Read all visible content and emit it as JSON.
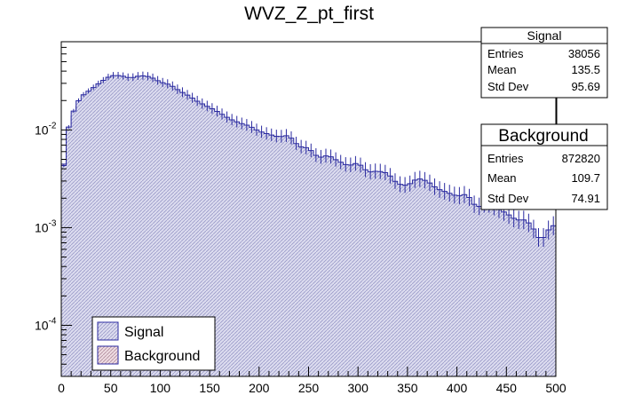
{
  "chart_data": {
    "type": "histogram",
    "title": "WVZ_Z_pt_first",
    "xlabel": "",
    "ylabel": "",
    "xlim": [
      0,
      500
    ],
    "ylim": [
      3e-05,
      0.08
    ],
    "yscale": "log",
    "bin_width": 5,
    "x_ticks": [
      0,
      50,
      100,
      150,
      200,
      250,
      300,
      350,
      400,
      450,
      500
    ],
    "x_tick_labels": [
      "0",
      "50",
      "100",
      "150",
      "200",
      "250",
      "300",
      "350",
      "400",
      "450",
      "500"
    ],
    "y_major_ticks": [
      0.0001,
      0.001,
      0.01
    ],
    "y_tick_labels": [
      {
        "base": "10",
        "exp": "-4"
      },
      {
        "base": "10",
        "exp": "-3"
      },
      {
        "base": "10",
        "exp": "-2"
      }
    ],
    "series": [
      {
        "name": "Signal",
        "fill": "#d6d6ec",
        "line": "#2a2aa0",
        "errors": true,
        "anchors": [
          [
            0,
            0.0022
          ],
          [
            5,
            0.0085
          ],
          [
            10,
            0.0135
          ],
          [
            15,
            0.018
          ],
          [
            20,
            0.022
          ],
          [
            30,
            0.026
          ],
          [
            40,
            0.031
          ],
          [
            50,
            0.036
          ],
          [
            60,
            0.036
          ],
          [
            70,
            0.034
          ],
          [
            80,
            0.036
          ],
          [
            90,
            0.035
          ],
          [
            100,
            0.031
          ],
          [
            110,
            0.029
          ],
          [
            120,
            0.025
          ],
          [
            130,
            0.022
          ],
          [
            140,
            0.019
          ],
          [
            150,
            0.017
          ],
          [
            160,
            0.015
          ],
          [
            170,
            0.013
          ],
          [
            180,
            0.0118
          ],
          [
            190,
            0.011
          ],
          [
            200,
            0.0097
          ],
          [
            210,
            0.009
          ],
          [
            220,
            0.0085
          ],
          [
            230,
            0.0088
          ],
          [
            240,
            0.0068
          ],
          [
            250,
            0.0065
          ],
          [
            260,
            0.0052
          ],
          [
            270,
            0.0055
          ],
          [
            280,
            0.0048
          ],
          [
            290,
            0.0043
          ],
          [
            300,
            0.0046
          ],
          [
            310,
            0.0037
          ],
          [
            320,
            0.0038
          ],
          [
            330,
            0.0036
          ],
          [
            340,
            0.0028
          ],
          [
            350,
            0.0027
          ],
          [
            360,
            0.0032
          ],
          [
            370,
            0.003
          ],
          [
            380,
            0.0025
          ],
          [
            390,
            0.0023
          ],
          [
            400,
            0.0021
          ],
          [
            410,
            0.0022
          ],
          [
            420,
            0.0016
          ],
          [
            430,
            0.0018
          ],
          [
            440,
            0.0016
          ],
          [
            450,
            0.0014
          ],
          [
            460,
            0.0012
          ],
          [
            470,
            0.0012
          ],
          [
            480,
            0.0009
          ],
          [
            485,
            0.0007
          ],
          [
            490,
            0.0009
          ],
          [
            500,
            0.0011
          ]
        ]
      },
      {
        "name": "Background",
        "fill": "#e8d4da",
        "line": "#2a2aa0",
        "errors": false,
        "anchors": [
          [
            0,
            0.0025
          ],
          [
            5,
            0.008
          ],
          [
            10,
            0.012
          ],
          [
            15,
            0.016
          ],
          [
            20,
            0.019
          ],
          [
            30,
            0.022
          ],
          [
            40,
            0.026
          ],
          [
            50,
            0.029
          ],
          [
            60,
            0.031
          ],
          [
            70,
            0.032
          ],
          [
            80,
            0.031
          ],
          [
            90,
            0.029
          ],
          [
            100,
            0.027
          ],
          [
            110,
            0.025
          ],
          [
            120,
            0.022
          ],
          [
            130,
            0.019
          ],
          [
            140,
            0.017
          ],
          [
            150,
            0.015
          ],
          [
            160,
            0.013
          ],
          [
            170,
            0.0115
          ],
          [
            180,
            0.01
          ],
          [
            190,
            0.0085
          ],
          [
            200,
            0.0074
          ],
          [
            210,
            0.0064
          ],
          [
            220,
            0.0056
          ],
          [
            230,
            0.0049
          ],
          [
            240,
            0.0042
          ],
          [
            250,
            0.0036
          ],
          [
            260,
            0.0032
          ],
          [
            270,
            0.0028
          ],
          [
            280,
            0.0024
          ],
          [
            290,
            0.0021
          ],
          [
            300,
            0.0018
          ],
          [
            310,
            0.0016
          ],
          [
            320,
            0.0014
          ],
          [
            330,
            0.0013
          ],
          [
            340,
            0.0011
          ],
          [
            350,
            0.00099
          ],
          [
            360,
            0.0009
          ],
          [
            370,
            0.00082
          ],
          [
            380,
            0.00073
          ],
          [
            390,
            0.00066
          ],
          [
            400,
            0.0006
          ],
          [
            410,
            0.00055
          ],
          [
            420,
            0.0005
          ],
          [
            430,
            0.00047
          ],
          [
            440,
            0.00043
          ],
          [
            450,
            0.0004
          ],
          [
            460,
            0.00036
          ],
          [
            470,
            0.00032
          ],
          [
            480,
            0.0003
          ],
          [
            490,
            0.00027
          ],
          [
            500,
            0.00025
          ]
        ]
      }
    ],
    "legend": {
      "position": "bottom-left",
      "entries": [
        "Signal",
        "Background"
      ]
    },
    "stats_boxes": [
      {
        "title": "Signal",
        "rows": [
          {
            "label": "Entries",
            "value": "38056"
          },
          {
            "label": "Mean",
            "value": "135.5"
          },
          {
            "label": "Std Dev",
            "value": "95.69"
          }
        ]
      },
      {
        "title": "Background",
        "rows": [
          {
            "label": "Entries",
            "value": "872820"
          },
          {
            "label": "Mean",
            "value": "109.7"
          },
          {
            "label": "Std Dev",
            "value": "74.91"
          }
        ]
      }
    ]
  }
}
